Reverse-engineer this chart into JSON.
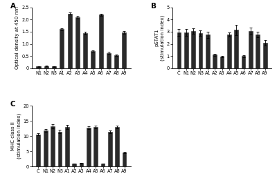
{
  "panel_A": {
    "labels": [
      "N1",
      "N2",
      "N3",
      "A1",
      "A2",
      "A3",
      "A4",
      "A5",
      "A6",
      "A7",
      "A8",
      "A9"
    ],
    "values": [
      0.07,
      0.09,
      0.07,
      1.6,
      2.25,
      2.1,
      1.45,
      0.7,
      2.2,
      0.62,
      0.52,
      1.47
    ],
    "errors": [
      0.01,
      0.01,
      0.01,
      0.04,
      0.04,
      0.05,
      0.06,
      0.04,
      0.05,
      0.04,
      0.03,
      0.06
    ],
    "ylabel": "Optical density at 450 nm",
    "ylim": [
      0,
      2.5
    ],
    "yticks": [
      0.0,
      0.5,
      1.0,
      1.5,
      2.0,
      2.5
    ],
    "ytick_labels": [
      "0",
      "0.5",
      "1.0",
      "1.5",
      "2.0",
      "2.5"
    ],
    "panel_label": "A"
  },
  "panel_B": {
    "labels": [
      "C",
      "N1",
      "N2",
      "N3",
      "A1",
      "A2",
      "A3",
      "A4",
      "A5",
      "A6",
      "A7",
      "A8",
      "A9"
    ],
    "values": [
      2.95,
      2.95,
      3.07,
      2.88,
      2.75,
      1.1,
      0.95,
      2.75,
      3.15,
      0.98,
      3.05,
      2.75,
      2.1
    ],
    "errors": [
      0.28,
      0.28,
      0.22,
      0.22,
      0.25,
      0.08,
      0.06,
      0.18,
      0.42,
      0.06,
      0.3,
      0.22,
      0.22
    ],
    "ylabel": "pSTAT1\n(stimulation index)",
    "ylim": [
      0,
      5
    ],
    "yticks": [
      0,
      1,
      2,
      3,
      4,
      5
    ],
    "ytick_labels": [
      "0",
      "1",
      "2",
      "3",
      "4",
      "5"
    ],
    "panel_label": "B"
  },
  "panel_C": {
    "labels": [
      "C",
      "N1",
      "N2",
      "N3",
      "A1",
      "A2",
      "A3",
      "A4",
      "A5",
      "A6",
      "A7",
      "A8",
      "A9"
    ],
    "values": [
      10.6,
      11.8,
      13.2,
      11.5,
      13.0,
      0.95,
      1.1,
      12.8,
      13.1,
      0.95,
      11.5,
      12.9,
      4.6
    ],
    "errors": [
      0.3,
      0.45,
      0.65,
      0.5,
      0.65,
      0.07,
      0.07,
      0.45,
      0.45,
      0.07,
      0.45,
      0.45,
      0.25
    ],
    "ylabel": "MHC class II\n(stimulation index)",
    "ylim": [
      0,
      20
    ],
    "yticks": [
      0,
      5,
      10,
      15,
      20
    ],
    "ytick_labels": [
      "0",
      "5",
      "10",
      "15",
      "20"
    ],
    "panel_label": "C"
  },
  "bar_color": "#2a2a2a",
  "bar_edgecolor": "#2a2a2a",
  "background_color": "#ffffff",
  "fontsize_label": 5.0,
  "fontsize_tick": 4.8,
  "fontsize_panel": 7.5
}
